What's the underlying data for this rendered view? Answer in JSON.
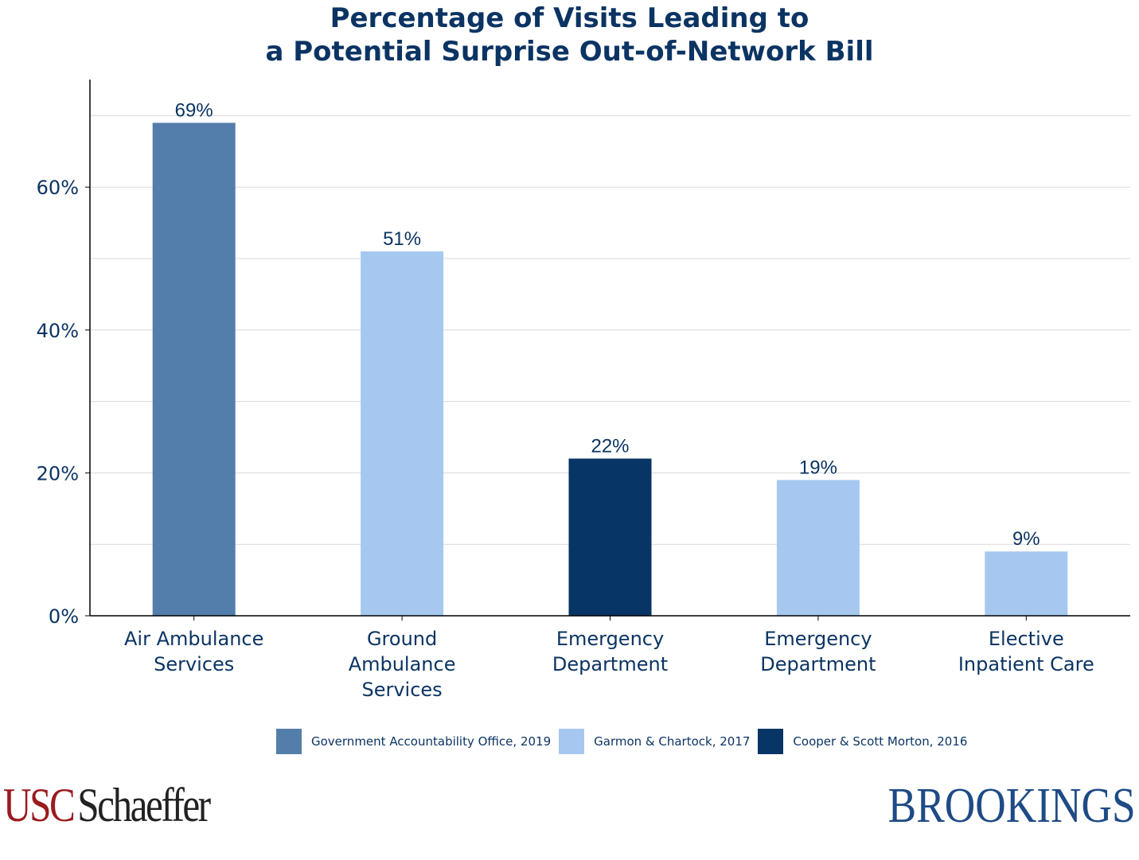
{
  "chart_data": {
    "type": "bar",
    "title": [
      "Percentage of Visits Leading to",
      "a Potential Surprise Out-of-Network Bill"
    ],
    "categories": [
      [
        "Air Ambulance",
        "Services"
      ],
      [
        "Ground",
        "Ambulance",
        "Services"
      ],
      [
        "Emergency",
        "Department"
      ],
      [
        "Emergency",
        "Department"
      ],
      [
        "Elective",
        "Inpatient Care"
      ]
    ],
    "values": [
      69,
      51,
      22,
      19,
      9
    ],
    "data_labels": [
      "69%",
      "51%",
      "22%",
      "19%",
      "9%"
    ],
    "bar_source": [
      0,
      1,
      2,
      1,
      1
    ],
    "legend": [
      {
        "label": "Government Accountability Office, 2019",
        "color": "#537eab"
      },
      {
        "label": "Garmon & Chartock, 2017",
        "color": "#a6c8f0"
      },
      {
        "label": "Cooper & Scott Morton, 2016",
        "color": "#073565"
      }
    ],
    "legend_position": "bottom",
    "ylim": [
      0,
      75
    ],
    "yticks": [
      0,
      20,
      40,
      60
    ],
    "ytick_labels": [
      "0%",
      "20%",
      "40%",
      "60%"
    ],
    "gridlines": [
      10,
      20,
      30,
      40,
      50,
      60,
      70
    ],
    "grid": true,
    "xlabel": "",
    "ylabel": ""
  },
  "logos": {
    "left": [
      "USC",
      "Schaeffer"
    ],
    "right": "BROOKINGS"
  }
}
